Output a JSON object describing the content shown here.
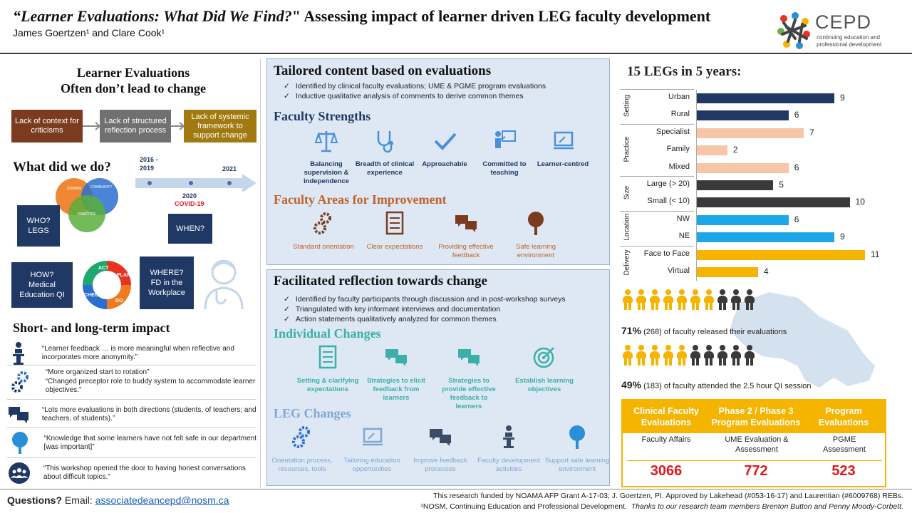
{
  "header": {
    "title_italic": "“Learner Evaluations: What Did We Find?",
    "title_rest": "\" Assessing impact of learner driven LEG faculty development",
    "authors": "James Goertzen¹ and Clare Cook¹",
    "logo_text": "CEPD",
    "logo_sub": "continuing education and professional development"
  },
  "left": {
    "heading1": "Learner Evaluations",
    "heading2": "Often don’t lead to change",
    "tags": [
      "Lack of context for criticisms",
      "Lack of structured reflection process",
      "Lack of systemic framework to support change"
    ],
    "what_heading": "What did we do?",
    "timeline": {
      "start": "2016 -\n2019",
      "mid_year": "2020",
      "mid_note": "COVID-19",
      "end": "2021"
    },
    "who": "WHO?\nLEGS",
    "when": "WHEN?",
    "how": "HOW?\nMedical Education QI",
    "where": "WHERE?\nFD in the Workplace",
    "venn": [
      "DOMAIN",
      "COMMUNITY",
      "PRACTICE"
    ],
    "cycle": [
      "ACT",
      "PLAN",
      "DO",
      "CHECK"
    ],
    "impact_heading": "Short- and long-term impact",
    "impacts": [
      "“Learner feedback … is more meaningful when reflective and incorporates more anonymity.”",
      "“More organized start to rotation”\n“Changed preceptor role to buddy system to accommodate learner objectives.”",
      "“Lots more evaluations in both directions (students, of teachers; and teachers, of students).”",
      "“Knowledge that some learners have not felt safe in our department [was important]”",
      "“This workshop opened the door to having honest conversations about difficult topics.”"
    ]
  },
  "panel1": {
    "heading": "Tailored content based on evaluations",
    "bullets": [
      "Identified by clinical faculty evaluations; UME & PGME program evaluations",
      "Inductive qualitative analysis of comments to derive common themes"
    ],
    "strengths_heading": "Faculty Strengths",
    "strengths": [
      "Balancing supervision & independence",
      "Breadth of clinical experience",
      "Approachable",
      "Committed to teaching",
      "Learner-centred"
    ],
    "improve_heading": "Faculty Areas for Improvement",
    "improvements": [
      "Standard orientation",
      "Clear expectations",
      "Providing effective feedback",
      "Safe learning environment"
    ]
  },
  "panel2": {
    "heading": "Facilitated reflection towards change",
    "bullets": [
      "Identified by faculty participants through discussion and in post-workshop surveys",
      "Triangulated with key informant interviews and documentation",
      "Action statements qualitatively analyzed for common themes"
    ],
    "individual_heading": "Individual Changes",
    "individual": [
      "Setting & clarifying expectations",
      "Strategies to elicit feedback from learners",
      "Strategies to provide effective feedback to learners",
      "Establish learning objectives"
    ],
    "leg_heading": "LEG Changes",
    "leg": [
      "Orientation process, resources, tools",
      "Tailoring education opportunities",
      "Improve feedback processes",
      "Faculty development activities",
      "Support safe learning environment"
    ]
  },
  "right": {
    "heading": "15 LEGs  in 5 years:",
    "stat1_pct": "71%",
    "stat1_text": " (268) of faculty released their evaluations",
    "stat2_pct": "49%",
    "stat2_text": " (183) of faculty attended the 2.5 hour QI session",
    "people1_highlight": 7,
    "people1_total": 10,
    "people2_highlight": 5,
    "people2_total": 10,
    "table": {
      "headers": [
        "Clinical Faculty Evaluations",
        "Phase 2 / Phase 3 Program Evaluations",
        "Program Evaluations"
      ],
      "sources": [
        "Faculty Affairs",
        "UME Evaluation & Assessment",
        "PGME Assessment"
      ],
      "counts": [
        "3066",
        "772",
        "523"
      ]
    }
  },
  "chart_data": {
    "type": "bar",
    "orientation": "horizontal",
    "title": "",
    "xlabel": "",
    "ylabel": "",
    "xlim": [
      0,
      11
    ],
    "groups": [
      {
        "name": "Setting",
        "color": "#1f3864",
        "categories": [
          "Urban",
          "Rural"
        ],
        "values": [
          9,
          6
        ]
      },
      {
        "name": "Practice",
        "color": "#f7c6a6",
        "categories": [
          "Specialist",
          "Family",
          "Mixed"
        ],
        "values": [
          7,
          2,
          6
        ]
      },
      {
        "name": "Size",
        "color": "#3a3a3a",
        "categories": [
          "Large (> 20)",
          "Small (< 10)"
        ],
        "values": [
          5,
          10
        ]
      },
      {
        "name": "Location",
        "color": "#1ea7e8",
        "categories": [
          "NW",
          "NE"
        ],
        "values": [
          6,
          9
        ]
      },
      {
        "name": "Delivery",
        "color": "#f4b400",
        "categories": [
          "Face to Face",
          "Virtual"
        ],
        "values": [
          11,
          4
        ]
      }
    ]
  },
  "footer": {
    "questions_label": "Questions?",
    "email_label": " Email: ",
    "email": "associatedeancepd@nosm.ca",
    "funding": "This research funded by NOAMA AFP Grant A-17-03; J. Goertzen, PI.  Approved by Lakehead (#053-16-17) and Laurentian (#6009768) REBs.",
    "affil": "¹NOSM, Continuing Education and Professional Development.",
    "thanks": "Thanks to our research team members Brenton Button and Penny Moody-Corbett."
  }
}
